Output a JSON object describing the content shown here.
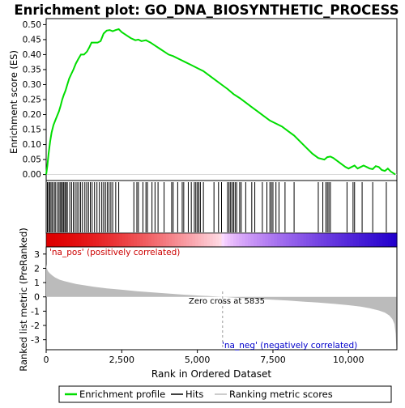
{
  "chart_data": [
    {
      "type": "line",
      "title": "Enrichment plot: GO_DNA_BIOSYNTHETIC_PROCESS",
      "ylabel": "Enrichment score (ES)",
      "ylim": [
        -0.02,
        0.52
      ],
      "xlim": [
        0,
        11600
      ],
      "yticks": [
        "0.00",
        "0.05",
        "0.10",
        "0.15",
        "0.20",
        "0.25",
        "0.30",
        "0.35",
        "0.40",
        "0.45",
        "0.50"
      ],
      "ytick_values": [
        0,
        0.05,
        0.1,
        0.15,
        0.2,
        0.25,
        0.3,
        0.35,
        0.4,
        0.45,
        0.5
      ],
      "color": "#00dd00",
      "series": [
        {
          "name": "Enrichment profile",
          "x": [
            0,
            40,
            80,
            130,
            180,
            240,
            300,
            360,
            420,
            480,
            530,
            580,
            640,
            700,
            760,
            830,
            900,
            980,
            1060,
            1150,
            1250,
            1350,
            1430,
            1500,
            1600,
            1700,
            1800,
            1900,
            2000,
            2100,
            2200,
            2300,
            2400,
            2500,
            2650,
            2800,
            2950,
            3050,
            3150,
            3300,
            3450,
            3600,
            3750,
            3900,
            4050,
            4200,
            4400,
            4600,
            4800,
            5000,
            5200,
            5400,
            5600,
            5800,
            6000,
            6200,
            6400,
            6600,
            6800,
            7000,
            7200,
            7400,
            7600,
            7800,
            8000,
            8200,
            8400,
            8600,
            8800,
            9000,
            9200,
            9300,
            9400,
            9500,
            9700,
            9900,
            10000,
            10100,
            10200,
            10300,
            10400,
            10500,
            10600,
            10700,
            10800,
            10900,
            11000,
            11100,
            11200,
            11300,
            11400,
            11550
          ],
          "y": [
            0.0,
            0.03,
            0.07,
            0.11,
            0.14,
            0.165,
            0.18,
            0.195,
            0.21,
            0.23,
            0.25,
            0.265,
            0.28,
            0.3,
            0.32,
            0.335,
            0.35,
            0.37,
            0.385,
            0.4,
            0.4,
            0.41,
            0.425,
            0.44,
            0.44,
            0.44,
            0.445,
            0.47,
            0.48,
            0.482,
            0.478,
            0.482,
            0.485,
            0.475,
            0.465,
            0.455,
            0.448,
            0.45,
            0.445,
            0.448,
            0.44,
            0.43,
            0.42,
            0.41,
            0.4,
            0.395,
            0.385,
            0.375,
            0.365,
            0.355,
            0.345,
            0.33,
            0.315,
            0.3,
            0.285,
            0.268,
            0.255,
            0.24,
            0.225,
            0.21,
            0.195,
            0.18,
            0.17,
            0.16,
            0.145,
            0.13,
            0.11,
            0.09,
            0.07,
            0.055,
            0.05,
            0.058,
            0.06,
            0.055,
            0.04,
            0.025,
            0.02,
            0.025,
            0.03,
            0.02,
            0.025,
            0.03,
            0.025,
            0.02,
            0.018,
            0.028,
            0.025,
            0.015,
            0.012,
            0.02,
            0.01,
            0.0
          ]
        }
      ]
    },
    {
      "type": "scatter",
      "description_role": "hits",
      "series": [
        {
          "name": "Hits",
          "x": [
            40,
            80,
            120,
            160,
            200,
            260,
            300,
            360,
            420,
            460,
            500,
            540,
            580,
            620,
            660,
            700,
            780,
            840,
            900,
            960,
            1020,
            1080,
            1140,
            1200,
            1280,
            1340,
            1400,
            1460,
            1520,
            1600,
            1680,
            1760,
            1840,
            1900,
            1960,
            2020,
            2080,
            2140,
            2200,
            2300,
            2400,
            2900,
            3000,
            3050,
            3200,
            3300,
            3350,
            3500,
            3600,
            3700,
            3900,
            4150,
            4200,
            4350,
            4500,
            4550,
            4700,
            4800,
            4900,
            4950,
            5000,
            5050,
            5100,
            5200,
            5550,
            5700,
            5800,
            6000,
            6050,
            6100,
            6150,
            6200,
            6250,
            6300,
            6400,
            6450,
            6600,
            6800,
            6900,
            7150,
            7300,
            7400,
            7450,
            7500,
            7600,
            7700,
            7900,
            8200,
            9000,
            9150,
            9250,
            9300,
            9350,
            9400,
            9950,
            10150,
            10200,
            10450,
            10800,
            11250
          ]
        }
      ]
    },
    {
      "type": "area",
      "ylabel": "Ranked list metric (PreRanked)",
      "xlabel": "Rank in Ordered Dataset",
      "xlim": [
        0,
        11600
      ],
      "ylim": [
        -3.7,
        3.5
      ],
      "xticks": [
        "0",
        "2,500",
        "5,000",
        "7,500",
        "10,000"
      ],
      "xtick_values": [
        0,
        2500,
        5000,
        7500,
        10000
      ],
      "yticks": [
        "-3",
        "-2",
        "-1",
        "0",
        "1",
        "2",
        "3"
      ],
      "ytick_values": [
        -3,
        -2,
        -1,
        0,
        1,
        2,
        3
      ],
      "series": [
        {
          "name": "Ranking metric scores",
          "x": [
            0,
            20,
            60,
            120,
            200,
            300,
            450,
            600,
            800,
            1000,
            1300,
            1600,
            2000,
            2500,
            3000,
            3500,
            4000,
            4500,
            5000,
            5500,
            5835,
            6200,
            6600,
            7000,
            7500,
            8000,
            8500,
            9000,
            9500,
            10000,
            10400,
            10700,
            11000,
            11200,
            11350,
            11450,
            11520,
            11560,
            11580
          ],
          "y": [
            2.3,
            2.0,
            1.8,
            1.65,
            1.5,
            1.35,
            1.2,
            1.1,
            1.0,
            0.9,
            0.8,
            0.7,
            0.6,
            0.5,
            0.4,
            0.32,
            0.24,
            0.16,
            0.1,
            0.04,
            0.0,
            -0.05,
            -0.1,
            -0.15,
            -0.2,
            -0.26,
            -0.33,
            -0.4,
            -0.48,
            -0.58,
            -0.68,
            -0.8,
            -0.95,
            -1.1,
            -1.3,
            -1.55,
            -1.9,
            -2.6,
            -3.55
          ]
        }
      ],
      "annotations": {
        "pos_label": "'na_pos' (positively correlated)",
        "neg_label": "'na_neg' (negatively correlated)",
        "zero_cross": "Zero cross at 5835",
        "zero_cross_x": 5835
      }
    }
  ],
  "legend": {
    "items": [
      {
        "label": "Enrichment profile",
        "color": "#00dd00"
      },
      {
        "label": "Hits",
        "color": "#000000"
      },
      {
        "label": "Ranking metric scores",
        "color": "#bbbbbb"
      }
    ]
  },
  "colors": {
    "profile": "#00dd00",
    "hits": "#000000",
    "metric_fill": "#bbbbbb",
    "pos_text": "#cc0000",
    "neg_text": "#0000cc",
    "heat_red": "#dd0000",
    "heat_blue": "#2200cc"
  }
}
